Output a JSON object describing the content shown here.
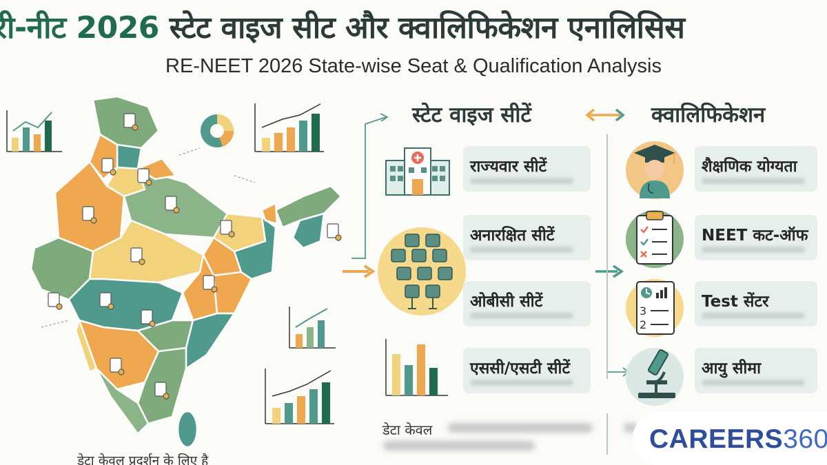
{
  "title": {
    "hindi_accent": "री-नीट 2026",
    "hindi_rest": "स्टेट वाइज सीट और क्वालिफिकेशन एनालिसिस",
    "english": "RE-NEET 2026 State-wise Seat & Qualification Analysis"
  },
  "columns": {
    "left_heading": "स्टेट वाइज सीटें",
    "right_heading": "क्वालिफिकेशन"
  },
  "seat_cards": [
    {
      "label": "राज्यवार सीटें",
      "icon": "hospital-icon"
    },
    {
      "label": "अनारक्षित सीटें",
      "icon": "seats-icon"
    },
    {
      "label": "ओबीसी सीटें",
      "icon": "seats-icon"
    },
    {
      "label": "एससी/एसटी सीटें",
      "icon": "bar-chart-icon"
    }
  ],
  "qualification_cards": [
    {
      "label": "शैक्षणिक योग्यता",
      "icon": "graduate-doctor-icon"
    },
    {
      "label": "NEET कट-ऑफ",
      "icon": "checklist-icon"
    },
    {
      "label": "Test सेंटर",
      "icon": "test-sheet-icon"
    },
    {
      "label": "आयु सीमा",
      "icon": "microscope-icon"
    }
  ],
  "footer": {
    "data_note_mid": "डेटा केवल",
    "data_note_left": "डेटा केवल प्रदर्शन के लिए है"
  },
  "brand": {
    "name": "CAREERS",
    "number": "360"
  },
  "colors": {
    "primary_green": "#1f6b4e",
    "teal": "#4f9a8c",
    "orange": "#f0a850",
    "yellow": "#f2d27a",
    "sage": "#8bb489",
    "brand_blue": "#2e4e9c"
  }
}
